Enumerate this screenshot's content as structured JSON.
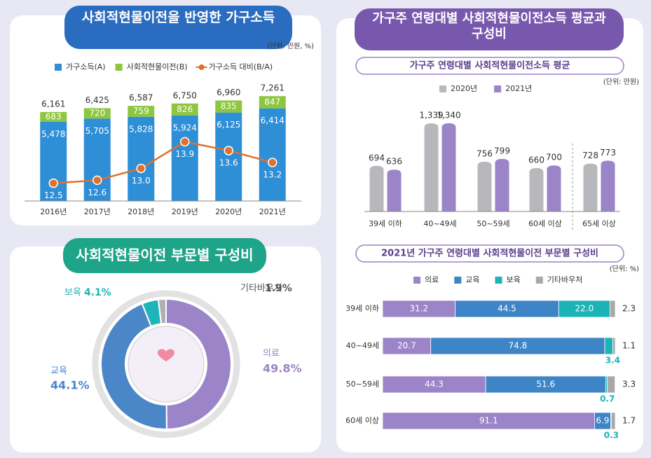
{
  "chart_data": [
    {
      "type": "bar",
      "stacked": true,
      "title": "사회적현물이전을 반영한 가구소득",
      "unit": "(단위: 만원, %)",
      "legend": "top",
      "categories": [
        "2016년",
        "2017년",
        "2018년",
        "2019년",
        "2020년",
        "2021년"
      ],
      "series": [
        {
          "name": "가구소득(A)",
          "color": "#2e8fd6",
          "values": [
            5478,
            5705,
            5828,
            5924,
            6125,
            6414
          ],
          "value_labels": [
            "5,478",
            "5,705",
            "5,828",
            "5,924",
            "6,125",
            "6,414"
          ]
        },
        {
          "name": "사회적현물이전(B)",
          "color": "#8dc63f",
          "values": [
            683,
            720,
            759,
            826,
            835,
            847
          ]
        },
        {
          "name": "가구소득 대비(B/A)",
          "color": "#e0702e",
          "type": "line",
          "axis": "y2",
          "values": [
            12.5,
            12.6,
            13.0,
            13.9,
            13.6,
            13.2
          ],
          "value_labels": [
            "12.5",
            "12.6",
            "13.0",
            "13.9",
            "13.6",
            "13.2"
          ]
        }
      ],
      "totals": [
        6161,
        6425,
        6587,
        6750,
        6960,
        7261
      ],
      "total_labels": [
        "6,161",
        "6,425",
        "6,587",
        "6,750",
        "6,960",
        "7,261"
      ],
      "ylim": [
        0,
        8000
      ],
      "y2lim": [
        11.9,
        15.8
      ]
    },
    {
      "type": "pie",
      "hole": true,
      "title": "사회적현물이전 부문별 구성비",
      "categories": [
        "의료",
        "교육",
        "보육",
        "기타바우처"
      ],
      "values": [
        49.8,
        44.1,
        4.1,
        1.9
      ],
      "value_labels": [
        "49.8%",
        "44.1%",
        "4.1%",
        "1.9%"
      ],
      "colors": [
        "#9b84c8",
        "#4a86c8",
        "#1fb5b8",
        "#b0b0b0"
      ]
    },
    {
      "type": "bar",
      "title": "가구주 연령대별 사회적현물이전소득 평균과 구성비",
      "subtitle": "가구주 연령대별 사회적현물이전소득 평균",
      "unit": "(단위: 만원)",
      "legend": "top",
      "categories": [
        "39세 이하",
        "40~49세",
        "50~59세",
        "60세 이상",
        "65세 이상"
      ],
      "series": [
        {
          "name": "2020년",
          "color": "#b8b8bc",
          "values": [
            694,
            1339,
            756,
            660,
            728
          ],
          "value_labels": [
            "694",
            "1,339",
            "756",
            "660",
            "728"
          ]
        },
        {
          "name": "2021년",
          "color": "#9b84c8",
          "values": [
            636,
            1340,
            799,
            700,
            773
          ],
          "value_labels": [
            "636",
            "1,340",
            "799",
            "700",
            "773"
          ]
        }
      ],
      "ylim": [
        0,
        1500
      ]
    },
    {
      "type": "bar",
      "orientation": "horizontal",
      "stacked": true,
      "title": "2021년 가구주 연령대별 사회적현물이전 부문별 구성비",
      "unit": "(단위: %)",
      "legend": "top",
      "categories": [
        "39세 이하",
        "40~49세",
        "50~59세",
        "60세 이상"
      ],
      "series": [
        {
          "name": "의료",
          "color": "#9b84c8",
          "values": [
            31.2,
            20.7,
            44.3,
            91.1
          ]
        },
        {
          "name": "교육",
          "color": "#3d85c6",
          "values": [
            44.5,
            74.8,
            51.6,
            6.9
          ]
        },
        {
          "name": "보육",
          "color": "#1bb3b5",
          "values": [
            22.0,
            3.4,
            0.7,
            0.3
          ],
          "value_labels": [
            "22.0",
            "3.4",
            "0.7",
            "0.3"
          ]
        },
        {
          "name": "기타바우처",
          "color": "#a8a8a8",
          "values": [
            2.3,
            1.1,
            3.3,
            1.7
          ]
        }
      ],
      "xlim": [
        0,
        100
      ]
    }
  ]
}
